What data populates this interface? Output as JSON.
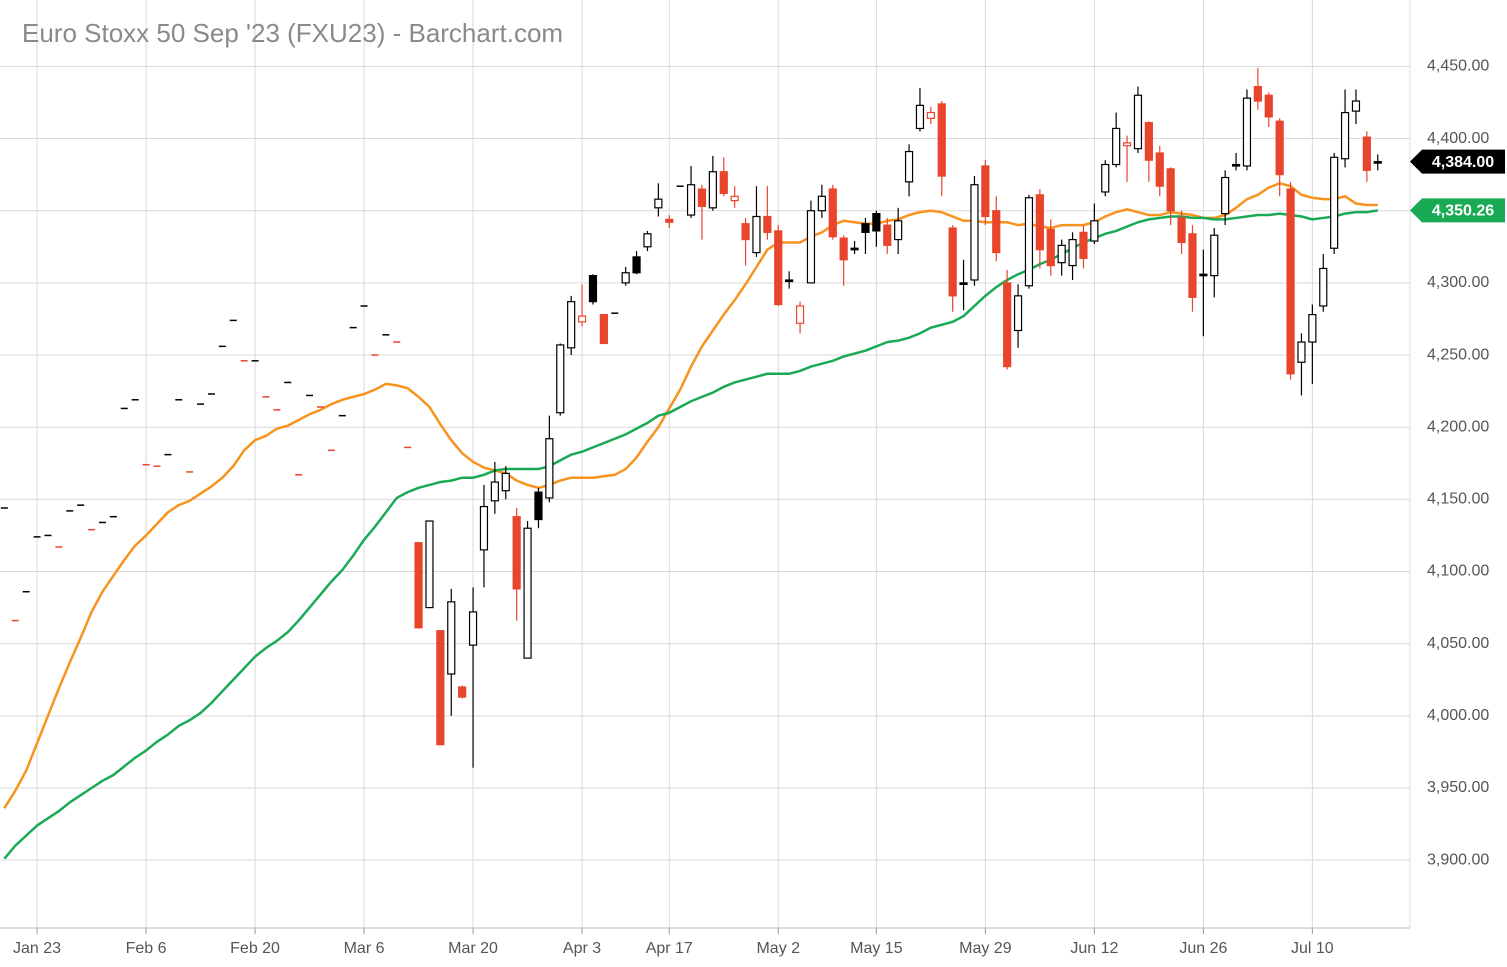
{
  "chart_data": {
    "type": "candlestick",
    "title": "Euro Stoxx 50 Sep '23 (FXU23) - Barchart.com",
    "categories": [
      null,
      null,
      null,
      "Jan 23",
      null,
      null,
      null,
      null,
      null,
      null,
      null,
      null,
      null,
      "Feb 6",
      null,
      null,
      null,
      null,
      null,
      null,
      null,
      null,
      null,
      "Feb 20",
      null,
      null,
      null,
      null,
      null,
      null,
      null,
      null,
      null,
      "Mar 6",
      null,
      null,
      null,
      null,
      null,
      null,
      null,
      null,
      null,
      "Mar 20",
      null,
      null,
      null,
      null,
      null,
      null,
      null,
      null,
      null,
      "Apr 3",
      null,
      null,
      null,
      null,
      null,
      null,
      null,
      "Apr 17",
      null,
      null,
      null,
      null,
      null,
      null,
      null,
      null,
      null,
      "May 2",
      null,
      null,
      null,
      null,
      null,
      null,
      null,
      null,
      "May 15",
      null,
      null,
      null,
      null,
      null,
      null,
      null,
      null,
      null,
      "May 29",
      null,
      null,
      null,
      null,
      null,
      null,
      null,
      null,
      null,
      "Jun 12",
      null,
      null,
      null,
      null,
      null,
      null,
      null,
      null,
      null,
      "Jun 26",
      null,
      null,
      null,
      null,
      null,
      null,
      null,
      null,
      null,
      "Jul 10",
      null,
      null,
      null,
      null,
      null,
      null
    ],
    "ohlc": [
      [
        4144,
        4144,
        4144,
        4144
      ],
      [
        4066,
        4066,
        4066,
        4066
      ],
      [
        4086,
        4086,
        4086,
        4086
      ],
      [
        4124,
        4124,
        4124,
        4124
      ],
      [
        4125,
        4125,
        4125,
        4125
      ],
      [
        4117,
        4117,
        4117,
        4117
      ],
      [
        4142,
        4142,
        4142,
        4142
      ],
      [
        4146,
        4146,
        4146,
        4146
      ],
      [
        4129,
        4129,
        4129,
        4129
      ],
      [
        4134,
        4134,
        4134,
        4134
      ],
      [
        4138,
        4138,
        4138,
        4138
      ],
      [
        4213,
        4213,
        4213,
        4213
      ],
      [
        4219,
        4219,
        4219,
        4219
      ],
      [
        4174,
        4174,
        4174,
        4174
      ],
      [
        4173,
        4173,
        4173,
        4173
      ],
      [
        4181,
        4181,
        4181,
        4181
      ],
      [
        4219,
        4219,
        4219,
        4219
      ],
      [
        4169,
        4169,
        4169,
        4169
      ],
      [
        4216,
        4216,
        4216,
        4216
      ],
      [
        4223,
        4223,
        4223,
        4223
      ],
      [
        4256,
        4256,
        4256,
        4256
      ],
      [
        4274,
        4274,
        4274,
        4274
      ],
      [
        4246,
        4246,
        4246,
        4246
      ],
      [
        4246,
        4246,
        4246,
        4246
      ],
      [
        4221,
        4221,
        4221,
        4221
      ],
      [
        4212,
        4212,
        4212,
        4212
      ],
      [
        4231,
        4231,
        4231,
        4231
      ],
      [
        4167,
        4167,
        4167,
        4167
      ],
      [
        4222,
        4222,
        4222,
        4222
      ],
      [
        4214,
        4214,
        4214,
        4214
      ],
      [
        4184,
        4184,
        4184,
        4184
      ],
      [
        4208,
        4208,
        4208,
        4208
      ],
      [
        4269,
        4269,
        4269,
        4269
      ],
      [
        4284,
        4284,
        4284,
        4284
      ],
      [
        4250,
        4250,
        4250,
        4250
      ],
      [
        4264,
        4264,
        4264,
        4264
      ],
      [
        4259,
        4259,
        4259,
        4259
      ],
      [
        4186,
        4186,
        4186,
        4186
      ],
      [
        4120,
        4120,
        4061,
        4061
      ],
      [
        4075,
        4135,
        4075,
        4135
      ],
      [
        4059,
        4059,
        3980,
        3980
      ],
      [
        4029,
        4088,
        4000,
        4079
      ],
      [
        4020,
        4021,
        4012,
        4013
      ],
      [
        4049,
        4089,
        3964,
        4072
      ],
      [
        4115,
        4160,
        4089,
        4145
      ],
      [
        4149,
        4176,
        4140,
        4162
      ],
      [
        4156,
        4173,
        4150,
        4168
      ],
      [
        4138,
        4144,
        4066,
        4088
      ],
      [
        4040,
        4135,
        4040,
        4130
      ],
      [
        4155,
        4158,
        4130,
        4136
      ],
      [
        4151,
        4208,
        4148,
        4192
      ],
      [
        4210,
        4258,
        4208,
        4257
      ],
      [
        4255,
        4291,
        4250,
        4287
      ],
      [
        4273,
        4299,
        4270,
        4277
      ],
      [
        4305,
        4306,
        4285,
        4287
      ],
      [
        4278,
        4278,
        4258,
        4258
      ],
      [
        4279,
        4279,
        4279,
        4279
      ],
      [
        4300,
        4311,
        4298,
        4307
      ],
      [
        4318,
        4322,
        4306,
        4307
      ],
      [
        4325,
        4336,
        4322,
        4334
      ],
      [
        4352,
        4369,
        4346,
        4358
      ],
      [
        4344,
        4347,
        4338,
        4342
      ],
      [
        4367,
        4367,
        4367,
        4367
      ],
      [
        4347,
        4381,
        4345,
        4368
      ],
      [
        4365,
        4368,
        4330,
        4353
      ],
      [
        4352,
        4388,
        4350,
        4377
      ],
      [
        4377,
        4387,
        4360,
        4362
      ],
      [
        4357,
        4367,
        4352,
        4360
      ],
      [
        4341,
        4345,
        4312,
        4330
      ],
      [
        4321,
        4367,
        4318,
        4346
      ],
      [
        4346,
        4367,
        4330,
        4335
      ],
      [
        4336,
        4340,
        4284,
        4285
      ],
      [
        4302,
        4308,
        4296,
        4302
      ],
      [
        4272,
        4287,
        4265,
        4284
      ],
      [
        4300,
        4357,
        4300,
        4350
      ],
      [
        4350,
        4368,
        4345,
        4360
      ],
      [
        4365,
        4368,
        4330,
        4332
      ],
      [
        4331,
        4333,
        4298,
        4316
      ],
      [
        4324,
        4329,
        4320,
        4324
      ],
      [
        4341,
        4345,
        4320,
        4335
      ],
      [
        4348,
        4350,
        4325,
        4336
      ],
      [
        4340,
        4345,
        4320,
        4326
      ],
      [
        4330,
        4352,
        4320,
        4343
      ],
      [
        4370,
        4396,
        4360,
        4391
      ],
      [
        4407,
        4435,
        4405,
        4423
      ],
      [
        4414,
        4422,
        4410,
        4418
      ],
      [
        4424,
        4426,
        4360,
        4374
      ],
      [
        4338,
        4340,
        4280,
        4291
      ],
      [
        4300,
        4316,
        4281,
        4300
      ],
      [
        4302,
        4374,
        4298,
        4368
      ],
      [
        4381,
        4385,
        4340,
        4346
      ],
      [
        4350,
        4360,
        4315,
        4321
      ],
      [
        4300,
        4309,
        4240,
        4242
      ],
      [
        4267,
        4299,
        4255,
        4291
      ],
      [
        4298,
        4361,
        4296,
        4359
      ],
      [
        4361,
        4365,
        4310,
        4323
      ],
      [
        4337,
        4344,
        4305,
        4312
      ],
      [
        4314,
        4330,
        4305,
        4326
      ],
      [
        4312,
        4335,
        4302,
        4330
      ],
      [
        4335,
        4340,
        4310,
        4317
      ],
      [
        4329,
        4355,
        4327,
        4343
      ],
      [
        4363,
        4385,
        4360,
        4382
      ],
      [
        4382,
        4418,
        4380,
        4407
      ],
      [
        4395,
        4402,
        4370,
        4397
      ],
      [
        4393,
        4436,
        4390,
        4430
      ],
      [
        4411,
        4412,
        4370,
        4385
      ],
      [
        4390,
        4395,
        4360,
        4367
      ],
      [
        4379,
        4380,
        4340,
        4350
      ],
      [
        4345,
        4350,
        4320,
        4328
      ],
      [
        4334,
        4340,
        4280,
        4290
      ],
      [
        4306,
        4323,
        4263,
        4306
      ],
      [
        4305,
        4338,
        4290,
        4333
      ],
      [
        4348,
        4378,
        4340,
        4373
      ],
      [
        4382,
        4390,
        4378,
        4381
      ],
      [
        4381,
        4434,
        4378,
        4428
      ],
      [
        4436,
        4449,
        4420,
        4426
      ],
      [
        4430,
        4432,
        4408,
        4415
      ],
      [
        4412,
        4414,
        4360,
        4375
      ],
      [
        4365,
        4370,
        4233,
        4237
      ],
      [
        4245,
        4265,
        4222,
        4259
      ],
      [
        4259,
        4285,
        4230,
        4278
      ],
      [
        4284,
        4320,
        4280,
        4310
      ],
      [
        4324,
        4390,
        4320,
        4387
      ],
      [
        4386,
        4434,
        4380,
        4418
      ],
      [
        4419,
        4434,
        4410,
        4426
      ],
      [
        4401,
        4405,
        4370,
        4378
      ],
      [
        4384,
        4389,
        4378,
        4384
      ]
    ],
    "up_color": "#000000",
    "down_color": "#e8452c",
    "series": [
      {
        "color": "#f7931e",
        "values": [
          3936,
          3948,
          3962,
          3981,
          4000,
          4019,
          4037,
          4054,
          4072,
          4086,
          4097,
          4108,
          4118,
          4125,
          4133,
          4141,
          4146,
          4149,
          4154,
          4159,
          4165,
          4173,
          4184,
          4191,
          4194,
          4199,
          4201,
          4205,
          4209,
          4212,
          4216,
          4219,
          4221,
          4223,
          4226,
          4230,
          4229,
          4227,
          4221,
          4214,
          4202,
          4191,
          4182,
          4176,
          4172,
          4170,
          4168,
          4163,
          4160,
          4158,
          4160,
          4163,
          4165,
          4165,
          4165,
          4166,
          4167,
          4171,
          4179,
          4190,
          4200,
          4213,
          4226,
          4242,
          4256,
          4267,
          4278,
          4288,
          4299,
          4311,
          4323,
          4328,
          4328,
          4328,
          4332,
          4335,
          4340,
          4343,
          4342,
          4341,
          4341,
          4343,
          4344,
          4347,
          4349,
          4350,
          4349,
          4346,
          4343,
          4343,
          4342,
          4342,
          4342,
          4340,
          4341,
          4339,
          4338,
          4340,
          4340,
          4340,
          4342,
          4346,
          4349,
          4351,
          4349,
          4347,
          4347,
          4349,
          4348,
          4347,
          4345,
          4345,
          4347,
          4352,
          4358,
          4361,
          4366,
          4369,
          4367,
          4361,
          4359,
          4358,
          4358,
          4360,
          4355,
          4354,
          4354
        ]
      },
      {
        "color": "#1aaa55",
        "values": [
          3901,
          3910,
          3917,
          3924,
          3929,
          3934,
          3940,
          3945,
          3950,
          3955,
          3959,
          3965,
          3971,
          3976,
          3982,
          3987,
          3993,
          3997,
          4002,
          4009,
          4017,
          4025,
          4033,
          4041,
          4047,
          4052,
          4058,
          4066,
          4075,
          4084,
          4093,
          4101,
          4111,
          4122,
          4131,
          4141,
          4151,
          4155,
          4158,
          4160,
          4162,
          4163,
          4165,
          4165,
          4167,
          4170,
          4171,
          4171,
          4171,
          4171,
          4173,
          4177,
          4181,
          4183,
          4186,
          4189,
          4192,
          4195,
          4199,
          4203,
          4208,
          4210,
          4214,
          4218,
          4221,
          4224,
          4228,
          4231,
          4233,
          4235,
          4237,
          4237,
          4237,
          4239,
          4242,
          4244,
          4246,
          4249,
          4251,
          4253,
          4256,
          4259,
          4260,
          4262,
          4265,
          4269,
          4271,
          4273,
          4277,
          4284,
          4291,
          4297,
          4302,
          4306,
          4309,
          4313,
          4316,
          4320,
          4324,
          4328,
          4331,
          4334,
          4336,
          4339,
          4342,
          4344,
          4345,
          4346,
          4346,
          4345,
          4345,
          4344,
          4344,
          4345,
          4346,
          4347,
          4347,
          4348,
          4347,
          4346,
          4344,
          4345,
          4346,
          4348,
          4349,
          4349,
          4350.26
        ]
      }
    ],
    "price_tags": [
      {
        "value": 4384.0,
        "label": "4,384.00",
        "color": "#000000"
      },
      {
        "value": 4350.26,
        "label": "4,350.26",
        "color": "#1aaa55"
      }
    ],
    "ylim": [
      3853,
      4496
    ],
    "yticks": [
      {
        "value": 3900,
        "label": "3,900.00"
      },
      {
        "value": 3950,
        "label": "3,950.00"
      },
      {
        "value": 4000,
        "label": "4,000.00"
      },
      {
        "value": 4050,
        "label": "4,050.00"
      },
      {
        "value": 4100,
        "label": "4,100.00"
      },
      {
        "value": 4150,
        "label": "4,150.00"
      },
      {
        "value": 4200,
        "label": "4,200.00"
      },
      {
        "value": 4250,
        "label": "4,250.00"
      },
      {
        "value": 4300,
        "label": "4,300.00"
      },
      {
        "value": 4350,
        "label": "4,350.00"
      },
      {
        "value": 4400,
        "label": "4,400.00"
      },
      {
        "value": 4450,
        "label": "4,450.00"
      }
    ],
    "grid": true
  }
}
